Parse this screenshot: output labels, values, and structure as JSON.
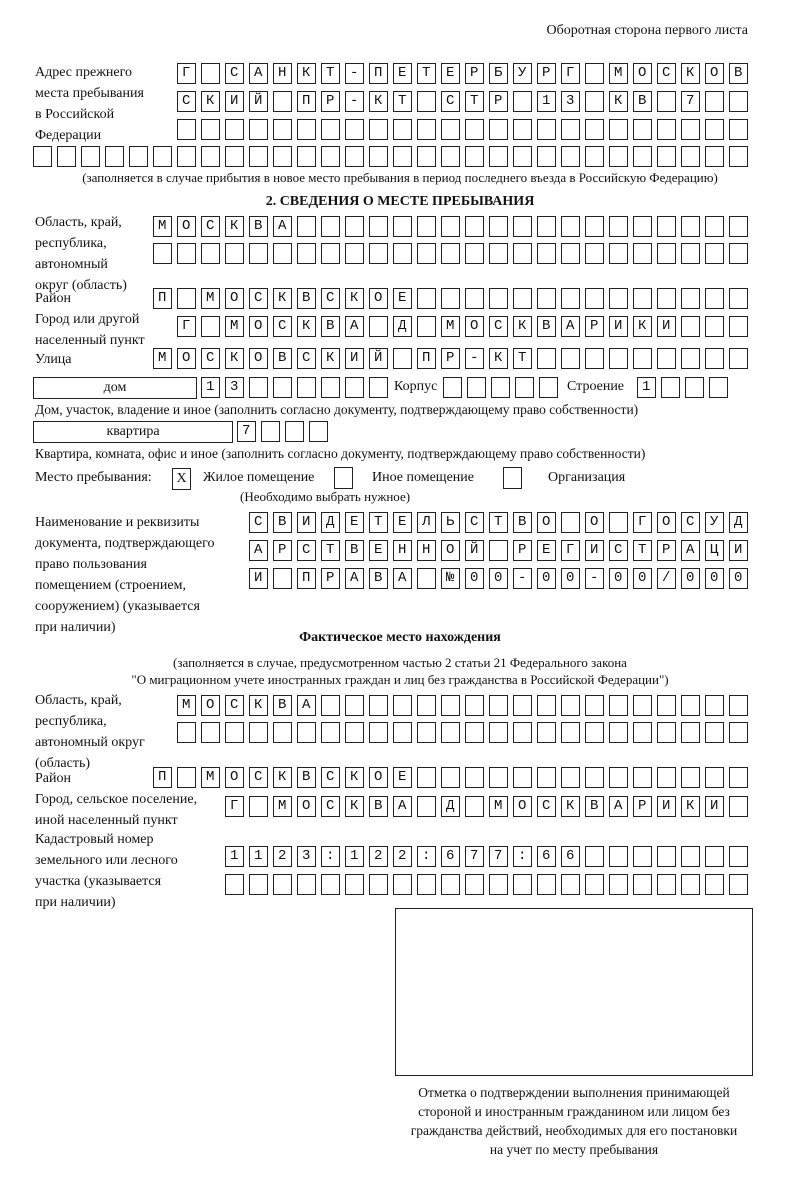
{
  "page_header": "Оборотная сторона первого листа",
  "previous_address": {
    "label": [
      "Адрес прежнего",
      "места пребывания",
      "в Российской",
      "Федерации"
    ],
    "rows": [
      "Г САНКТ-ПЕТЕРБУРГ МОСКОВ",
      "СКИЙ ПР-КТ СТР 13 КВ 7",
      "",
      ""
    ],
    "note": "(заполняется в случае прибытия в новое место пребывания в период последнего въезда в Российскую Федерацию)"
  },
  "section2": {
    "title": "2. СВЕДЕНИЯ О МЕСТЕ ПРЕБЫВАНИЯ",
    "region_label": [
      "Область, край,",
      "республика,",
      "автономный",
      "округ (область)"
    ],
    "region_rows": [
      "МОСКВА",
      ""
    ],
    "district_label": "Район",
    "district": "П МОСКВСКОЕ",
    "city_label": [
      "Город или другой",
      "населенный пункт"
    ],
    "city": "Г МОСКВА Д МОСКВАРИКИ",
    "street_label": "Улица",
    "street": "МОСКОВСКИЙ ПР-КТ",
    "house_type": "дом",
    "house_number": "13",
    "building_label": "Корпус",
    "building": "",
    "structure_label": "Строение",
    "structure": "1",
    "house_caption": "Дом, участок, владение и иное (заполнить согласно документу, подтверждающему право собственности)",
    "apartment_type": "квартира",
    "apartment_number": "7",
    "apartment_caption": "Квартира, комната, офис и иное (заполнить согласно документу, подтверждающему право собственности)",
    "place_label": "Место пребывания:",
    "place_options": [
      {
        "label": "Жилое помещение",
        "mark": "X"
      },
      {
        "label": "Иное помещение",
        "mark": ""
      },
      {
        "label": "Организация",
        "mark": ""
      }
    ],
    "place_hint": "(Необходимо выбрать нужное)",
    "document_label": [
      "Наименование и реквизиты",
      "документа, подтверждающего",
      "право пользования",
      "помещением (строением,",
      "сооружением) (указывается",
      "при наличии)"
    ],
    "document_rows": [
      "СВИДЕТЕЛЬСТВО О ГОСУД",
      "АРСТВЕННОЙ РЕГИСТРАЦИ",
      "И ПРАВА №00-00-00/000"
    ]
  },
  "actual_location": {
    "title": "Фактическое место нахождения",
    "note": [
      "(заполняется в случае, предусмотренном частью 2 статьи 21 Федерального закона",
      "\"О миграционном учете иностранных граждан и лиц без гражданства в Российской Федерации\")"
    ],
    "region_label": [
      "Область, край,",
      "республика,",
      "автономный округ",
      "(область)"
    ],
    "region_rows": [
      "МОСКВА",
      ""
    ],
    "district_label": "Район",
    "district": "П МОСКВСКОЕ",
    "city_label": [
      "Город, сельское поселение,",
      "иной населенный пункт"
    ],
    "city": "Г МОСКВА Д МОСКВАРИКИ",
    "cadastral_label": [
      "Кадастровый номер",
      "земельного или лесного",
      "участка (указывается",
      "при наличии)"
    ],
    "cadastral_rows": [
      "1123:122:677:66",
      ""
    ]
  },
  "confirmation": {
    "caption": [
      "Отметка о подтверждении выполнения принимающей",
      "стороной и иностранным гражданином или лицом без",
      "гражданства действий, необходимых для его постановки",
      "на учет по месту пребывания"
    ]
  }
}
